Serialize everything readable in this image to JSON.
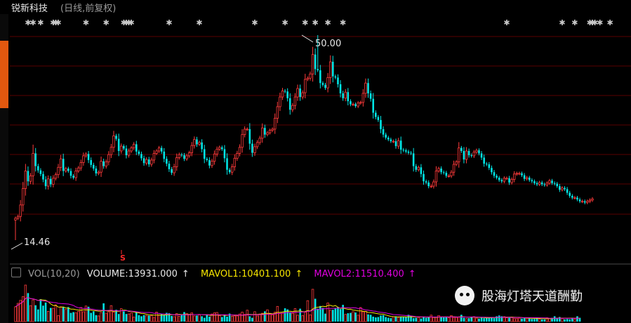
{
  "header": {
    "stock_name": "锐新科技",
    "mode": "(日线,前复权)"
  },
  "price_chart": {
    "high_label": "50.00",
    "low_label": "14.46",
    "signal_label": "S"
  },
  "volume_panel": {
    "indicator": "VOL(10,20)",
    "volume": "VOLUME:13931.000",
    "mavol1": "MAVOL1:10401.100",
    "mavol2": "MAVOL2:11510.400",
    "arrow": "↑"
  },
  "watermark": {
    "text": "股海灯塔天道酬勤"
  },
  "colors": {
    "up": "#ff3b3b",
    "down": "#00e5e5",
    "mavol1": "#f6e500",
    "mavol2": "#e000e0",
    "grid": "#5a0000",
    "marker": "#c8c8c8"
  },
  "chart_data": {
    "type": "candlestick",
    "series": [
      {
        "name": "close",
        "values": [
          19.8,
          20.1,
          22.0,
          24.7,
          27.6,
          25.9,
          26.8,
          30.5,
          28.4,
          27.7,
          27.1,
          26.2,
          25.1,
          26.3,
          25.4,
          26.4,
          27.0,
          28.2,
          29.6,
          27.6,
          28.0,
          27.6,
          26.8,
          26.5,
          27.6,
          28.1,
          29.0,
          30.1,
          30.4,
          29.4,
          28.6,
          28.0,
          27.2,
          27.4,
          29.2,
          28.4,
          29.1,
          30.3,
          31.5,
          33.4,
          32.9,
          30.9,
          31.7,
          31.3,
          30.2,
          30.9,
          31.4,
          32.0,
          30.8,
          30.4,
          29.7,
          28.9,
          29.5,
          28.7,
          29.4,
          30.5,
          30.9,
          31.4,
          30.8,
          29.6,
          28.8,
          27.9,
          27.3,
          28.3,
          29.8,
          30.3,
          30.2,
          29.6,
          30.1,
          30.6,
          31.8,
          32.8,
          32.0,
          32.3,
          31.2,
          29.6,
          29.4,
          28.5,
          29.2,
          30.4,
          31.2,
          31.5,
          31.2,
          29.7,
          27.8,
          27.4,
          28.3,
          29.7,
          30.5,
          31.5,
          33.6,
          34.5,
          34.5,
          32.1,
          30.6,
          31.6,
          32.3,
          33.0,
          34.7,
          33.6,
          33.9,
          34.3,
          34.5,
          36.3,
          38.2,
          39.8,
          40.8,
          40.7,
          39.6,
          37.7,
          38.4,
          39.8,
          41.2,
          39.8,
          40.5,
          42.7,
          42.9,
          43.6,
          46.8,
          44.4,
          44.2,
          42.1,
          41.8,
          41.3,
          43.0,
          45.6,
          43.2,
          43.0,
          41.9,
          40.4,
          39.6,
          40.6,
          39.1,
          38.6,
          38.6,
          38.3,
          38.8,
          38.9,
          40.4,
          42.1,
          40.4,
          39.5,
          37.2,
          36.5,
          36.0,
          34.5,
          33.6,
          33.1,
          32.8,
          32.5,
          32.5,
          31.7,
          32.6,
          31.1,
          31.0,
          30.8,
          30.6,
          30.5,
          28.4,
          27.8,
          28.2,
          27.1,
          25.9,
          25.7,
          25.1,
          25.1,
          25.8,
          27.6,
          28.0,
          27.4,
          27.3,
          26.8,
          26.8,
          27.4,
          28.7,
          29.1,
          31.4,
          30.9,
          29.5,
          30.9,
          30.2,
          30.1,
          30.7,
          31.0,
          30.5,
          29.8,
          28.8,
          28.7,
          28.1,
          27.4,
          26.8,
          26.5,
          26.1,
          25.9,
          26.4,
          26.4,
          25.7,
          26.2,
          27.1,
          27.2,
          27.2,
          26.9,
          26.3,
          26.5,
          26.1,
          25.9,
          25.6,
          25.4,
          25.7,
          25.4,
          25.3,
          25.6,
          26.0,
          25.6,
          25.5,
          25.1,
          24.5,
          24.8,
          24.6,
          24.0,
          23.5,
          23.2,
          23.2,
          22.9,
          22.6,
          22.6,
          22.4,
          22.6,
          22.8,
          23.0
        ]
      },
      {
        "name": "volume",
        "values": [
          3.9,
          4.8,
          5.6,
          6.6,
          9.6,
          7.5,
          4.2,
          5.7,
          4.3,
          3.2,
          5.9,
          4.2,
          5.0,
          2.7,
          3.6,
          3.5,
          4.4,
          1.6,
          3.9,
          3.8,
          3.2,
          3.8,
          2.3,
          2.5,
          2.3,
          2.7,
          3.7,
          2.6,
          4.1,
          3.9,
          2.3,
          2.7,
          1.7,
          1.5,
          2.4,
          4.8,
          2.2,
          2.6,
          4.2,
          2.5,
          3.1,
          2.0,
          3.4,
          2.7,
          2.0,
          2.0,
          2.3,
          1.2,
          2.6,
          1.7,
          1.4,
          1.7,
          1.6,
          1.6,
          1.6,
          1.1,
          2.5,
          1.7,
          2.0,
          1.8,
          2.3,
          2.2,
          1.5,
          1.3,
          2.1,
          1.4,
          1.9,
          2.5,
          2.1,
          1.8,
          2.3,
          1.5,
          1.6,
          1.8,
          1.4,
          1.0,
          1.9,
          1.3,
          2.0,
          2.3,
          2.4,
          1.6,
          1.2,
          1.6,
          1.3,
          2.1,
          1.4,
          1.5,
          1.5,
          2.0,
          2.5,
          1.9,
          3.0,
          1.4,
          1.0,
          2.6,
          1.5,
          2.0,
          2.2,
          2.7,
          3.1,
          2.1,
          1.8,
          2.5,
          4.0,
          2.2,
          2.5,
          3.5,
          3.2,
          2.4,
          2.2,
          3.4,
          1.7,
          3.4,
          1.6,
          2.5,
          5.5,
          1.8,
          8.5,
          6.0,
          3.4,
          4.1,
          3.6,
          2.1,
          4.9,
          3.0,
          3.1,
          3.6,
          3.8,
          3.3,
          4.4,
          1.9,
          2.2,
          2.3,
          2.6,
          2.4,
          1.7,
          3.7,
          2.6,
          2.7,
          1.9,
          1.8,
          1.3,
          1.1,
          1.2,
          1.6,
          1.7,
          1.2,
          1.0,
          0.9,
          1.3,
          1.4,
          1.1,
          1.3,
          1.2,
          1.2,
          1.8,
          1.5,
          0.9,
          1.0,
          1.1,
          0.8,
          1.3,
          1.0,
          1.1,
          1.7,
          1.1,
          1.2,
          1.6,
          1.2,
          1.1,
          1.2,
          1.0,
          1.6,
          1.1,
          1.1,
          1.2,
          1.8,
          1.0,
          0.8,
          0.9,
          1.2,
          1.3,
          0.9,
          0.8,
          1.0,
          0.9,
          1.0,
          1.1,
          1.2,
          0.9,
          1.4,
          1.6,
          1.4,
          1.3,
          1.0,
          1.0,
          1.1,
          0.8,
          0.8,
          0.9,
          0.8,
          0.9,
          0.9,
          0.8,
          0.7,
          0.7,
          1.1,
          0.7,
          0.6,
          0.6,
          1.0,
          0.8,
          1.0,
          1.4,
          1.0,
          1.2,
          0.8,
          0.6,
          0.7,
          0.6,
          1.0,
          0.6,
          1.4,
          1.0
        ]
      }
    ],
    "ylim": [
      14.46,
      50.0
    ],
    "grid": true,
    "marker_columns": [
      5,
      7,
      10,
      15,
      16,
      17,
      28,
      36,
      43,
      44,
      45,
      46,
      61,
      73,
      95,
      107,
      115,
      119,
      124,
      130,
      195,
      217,
      222,
      228,
      229,
      230,
      232,
      236
    ]
  }
}
